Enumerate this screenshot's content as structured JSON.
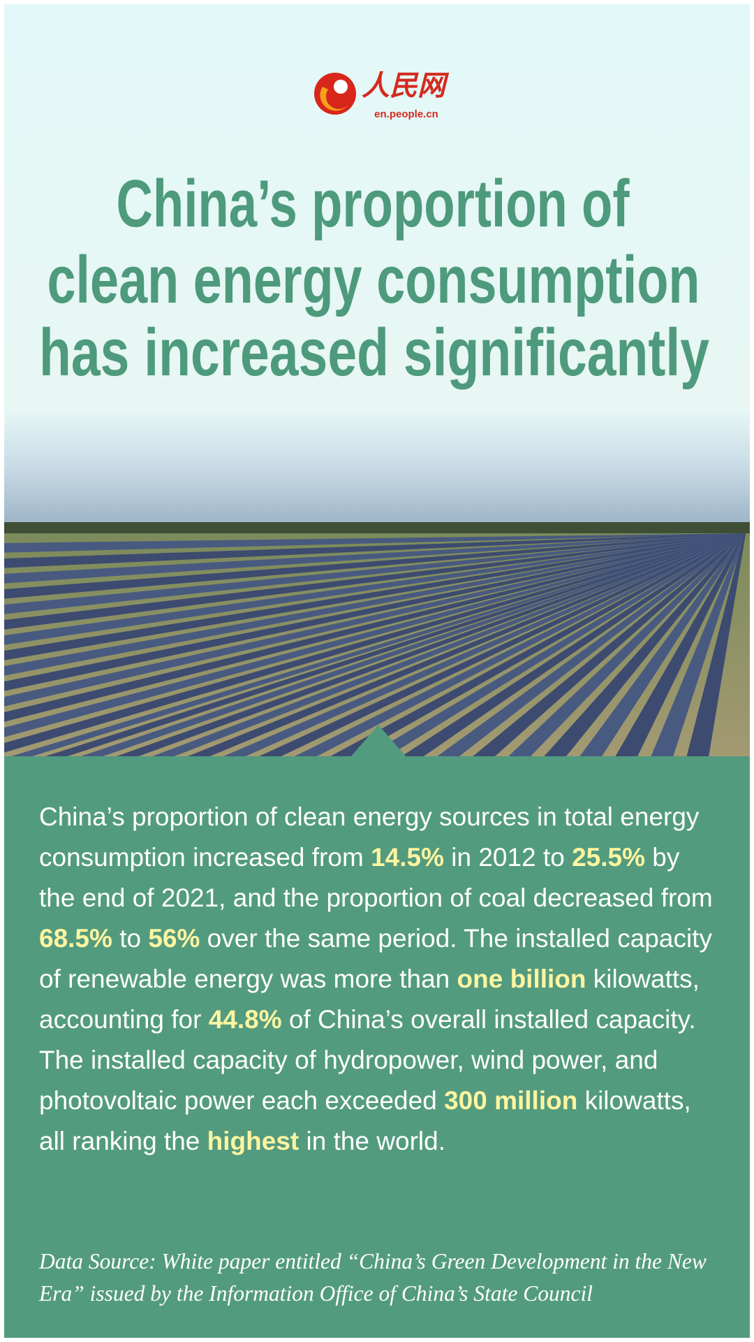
{
  "logo": {
    "name": "人民网",
    "url": "en.people.cn"
  },
  "title": [
    "China’s proportion of",
    "clean energy consumption",
    "has increased significantly"
  ],
  "body": {
    "runs": [
      {
        "text": "China’s proportion of clean energy sources in total energy consumption increased from ",
        "highlight": false
      },
      {
        "text": "14.5%",
        "highlight": true
      },
      {
        "text": " in 2012 to ",
        "highlight": false
      },
      {
        "text": "25.5%",
        "highlight": true
      },
      {
        "text": " by the end of 2021, and the proportion of coal decreased from ",
        "highlight": false
      },
      {
        "text": "68.5%",
        "highlight": true
      },
      {
        "text": " to ",
        "highlight": false
      },
      {
        "text": "56%",
        "highlight": true
      },
      {
        "text": " over the same period. The installed capacity of renewable energy was more than ",
        "highlight": false
      },
      {
        "text": "one billion",
        "highlight": true
      },
      {
        "text": " kilowatts, accounting for ",
        "highlight": false
      },
      {
        "text": "44.8%",
        "highlight": true
      },
      {
        "text": " of China’s overall installed capacity. The installed capacity of hydropower, wind power, and photovoltaic power each exceeded ",
        "highlight": false
      },
      {
        "text": "300 million",
        "highlight": true
      },
      {
        "text": " kilowatts, all ranking the ",
        "highlight": false
      },
      {
        "text": "highest",
        "highlight": true
      },
      {
        "text": " in the world.",
        "highlight": false
      }
    ]
  },
  "source": "Data Source: White paper entitled “China’s Green Development in the New Era” issued by the Information Office of China’s State Council"
}
